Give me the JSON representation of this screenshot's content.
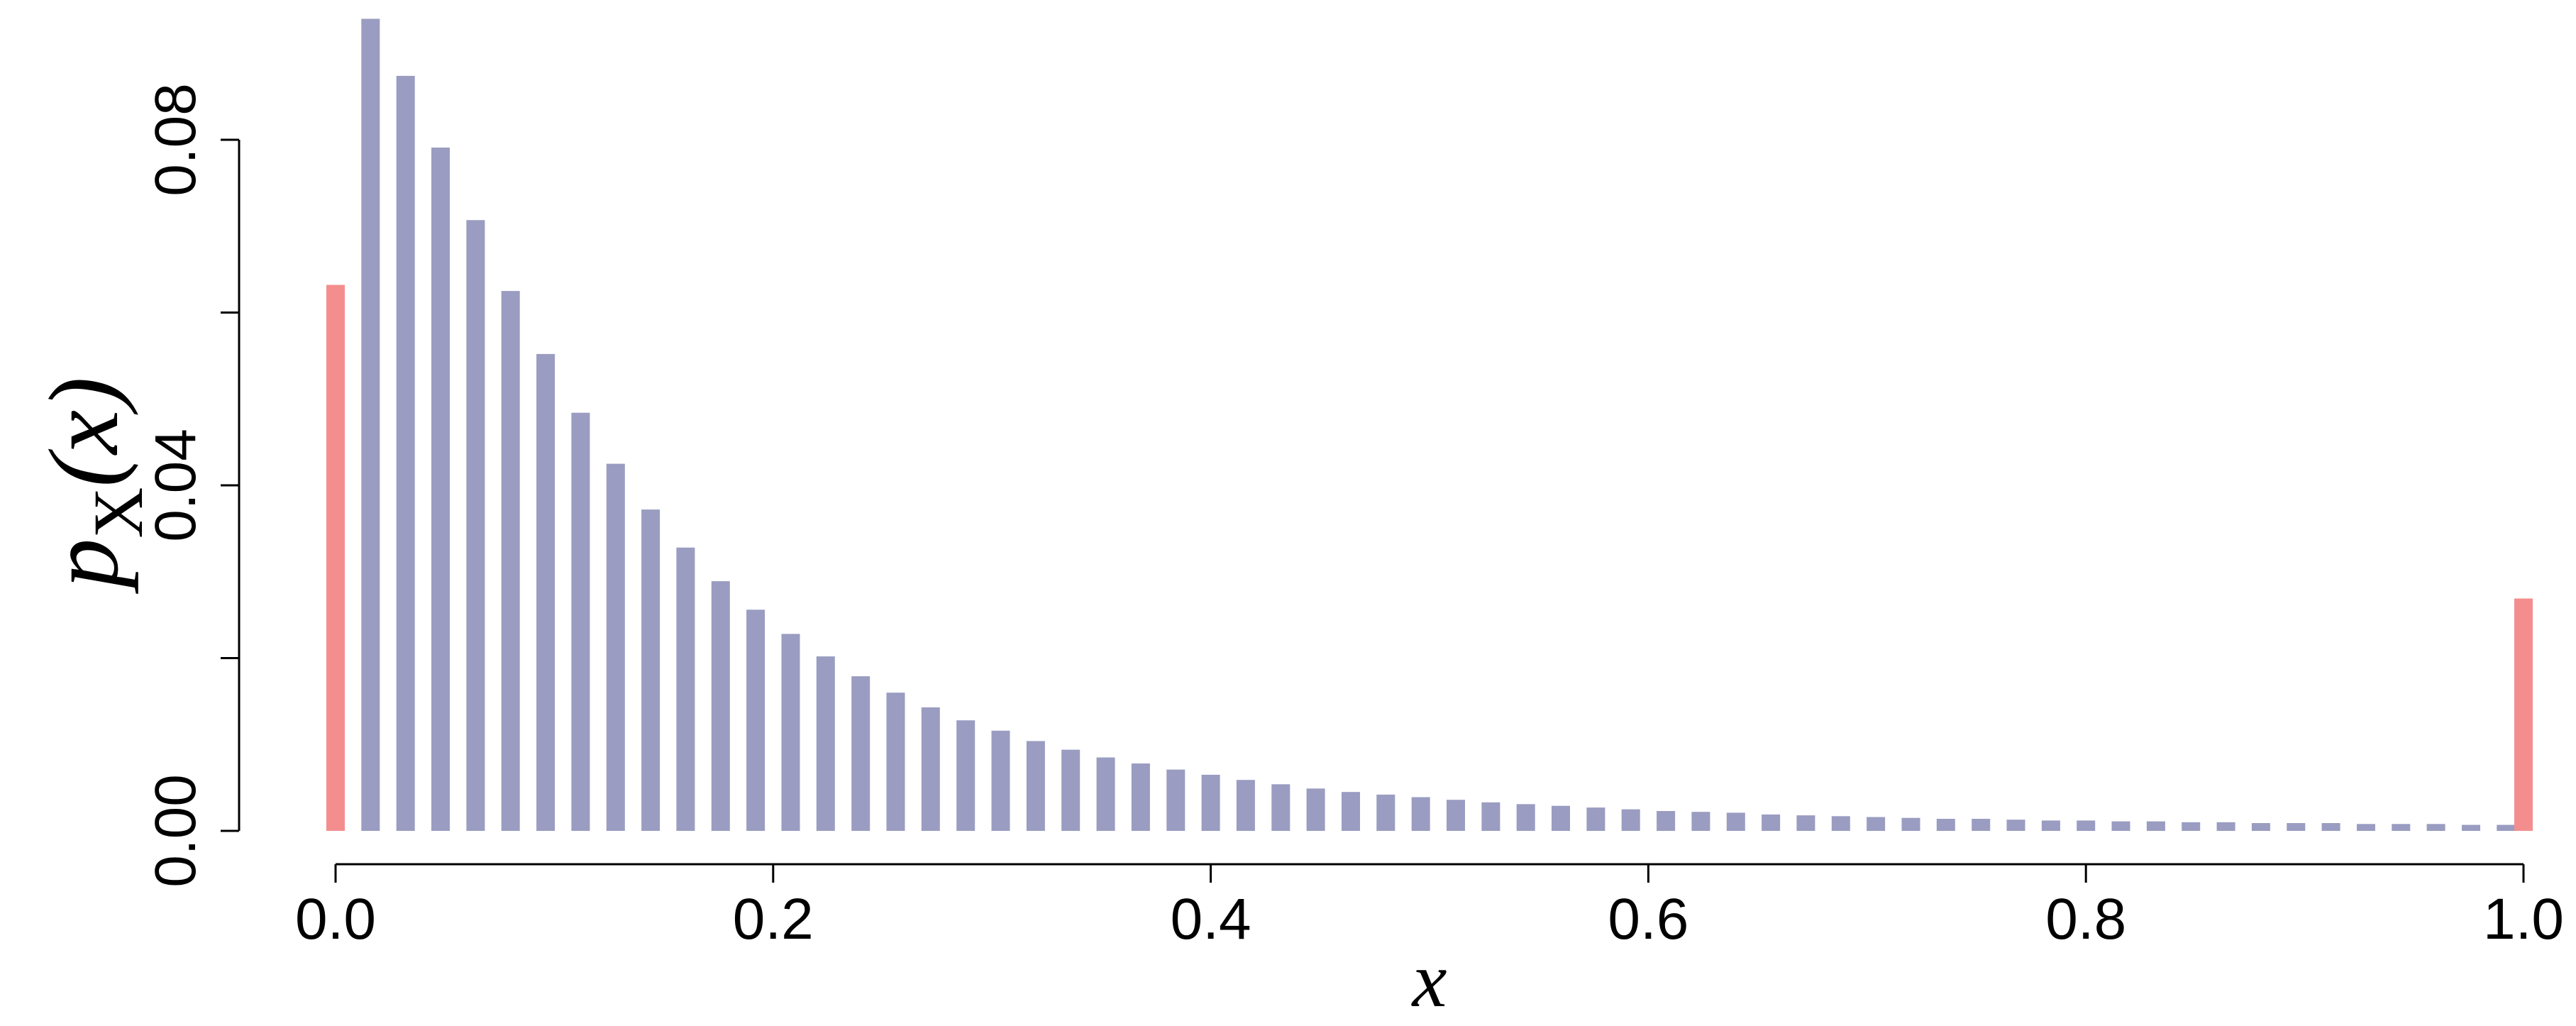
{
  "chart_data": {
    "type": "bar",
    "xlabel": "x",
    "ylabel": {
      "main": "p",
      "sub": "X",
      "arg": "(x)"
    },
    "xlim": [
      0.0,
      1.0
    ],
    "ylim": [
      0.0,
      0.094
    ],
    "xticks": [
      0.0,
      0.2,
      0.4,
      0.6,
      0.8,
      1.0
    ],
    "xtick_labels": [
      "0.0",
      "0.2",
      "0.4",
      "0.6",
      "0.8",
      "1.0"
    ],
    "yticks": [
      0.0,
      0.02,
      0.04,
      0.06,
      0.08
    ],
    "ytick_labels": [
      "0.00",
      "",
      "0.04",
      "",
      "0.08"
    ],
    "grid": false,
    "series": [
      {
        "color": "#9a9cc1",
        "x": [
          0.016,
          0.032,
          0.048,
          0.064,
          0.08,
          0.096,
          0.112,
          0.128,
          0.144,
          0.16,
          0.176,
          0.192,
          0.208,
          0.224,
          0.24,
          0.256,
          0.272,
          0.288,
          0.304,
          0.32,
          0.336,
          0.352,
          0.368,
          0.384,
          0.4,
          0.416,
          0.432,
          0.448,
          0.464,
          0.48,
          0.496,
          0.512,
          0.528,
          0.544,
          0.56,
          0.576,
          0.592,
          0.608,
          0.624,
          0.64,
          0.656,
          0.672,
          0.688,
          0.704,
          0.72,
          0.736,
          0.752,
          0.768,
          0.784,
          0.8,
          0.816,
          0.832,
          0.848,
          0.864,
          0.88,
          0.896,
          0.912,
          0.928,
          0.944,
          0.96,
          0.976,
          0.992
        ],
        "values": [
          0.094,
          0.0874,
          0.0791,
          0.0707,
          0.0625,
          0.0552,
          0.0484,
          0.0425,
          0.0372,
          0.0328,
          0.0289,
          0.0256,
          0.0228,
          0.0202,
          0.0179,
          0.016,
          0.0143,
          0.0128,
          0.0116,
          0.0104,
          0.0094,
          0.0085,
          0.0078,
          0.0071,
          0.0065,
          0.0059,
          0.0054,
          0.0049,
          0.0045,
          0.0042,
          0.0039,
          0.0036,
          0.0033,
          0.0031,
          0.0029,
          0.0027,
          0.0025,
          0.0023,
          0.0022,
          0.0021,
          0.0019,
          0.0018,
          0.0017,
          0.0016,
          0.0015,
          0.0014,
          0.0014,
          0.0013,
          0.0012,
          0.0012,
          0.0011,
          0.0011,
          0.001,
          0.001,
          0.0009,
          0.0009,
          0.0009,
          0.0008,
          0.0008,
          0.0008,
          0.0007,
          0.0007
        ]
      },
      {
        "color": "#f48d8d",
        "x": [
          0.0,
          1.0
        ],
        "values": [
          0.0632,
          0.0269
        ]
      }
    ]
  }
}
